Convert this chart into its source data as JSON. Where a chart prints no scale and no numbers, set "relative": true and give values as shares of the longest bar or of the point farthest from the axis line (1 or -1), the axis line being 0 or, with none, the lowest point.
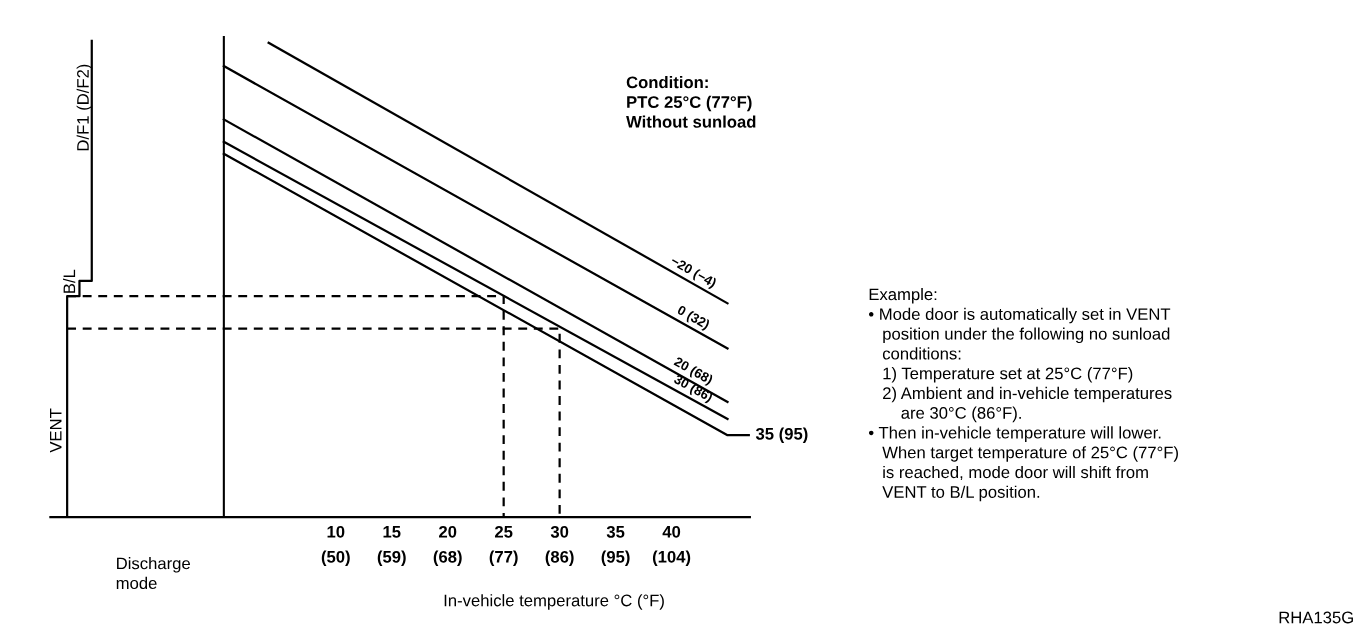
{
  "chart_data": {
    "type": "line",
    "relative": true,
    "xlabel": "In-vehicle temperature °C (°F)",
    "xlim": [
      -15.5,
      47
    ],
    "xticks": [
      10,
      15,
      20,
      25,
      30,
      35,
      40
    ],
    "x2lim": [
      4.1,
      116.6
    ],
    "x2ticks": [
      {
        "value": 50,
        "label": "(50)"
      },
      {
        "value": 59,
        "label": "(59)"
      },
      {
        "value": 68,
        "label": "(68)"
      },
      {
        "value": 77,
        "label": "(77)"
      },
      {
        "value": 86,
        "label": "(86)"
      },
      {
        "value": 95,
        "label": "(95)"
      },
      {
        "value": 104,
        "label": "(104)"
      }
    ],
    "grid": false,
    "legend": false,
    "marker": "none",
    "ref_lines": [
      {
        "axis": "x",
        "value": 0,
        "color": "#000000",
        "line_style": "solid"
      }
    ],
    "series": [
      {
        "name": "−20 (−4)",
        "color": "#000000",
        "x": [
          4,
          45
        ],
        "values": [
          0.996,
          0.449
        ]
      },
      {
        "name": "0 (32)",
        "color": "#000000",
        "x": [
          0,
          45
        ],
        "values": [
          0.947,
          0.354
        ]
      },
      {
        "name": "20 (68)",
        "color": "#000000",
        "x": [
          0,
          45
        ],
        "values": [
          0.835,
          0.242
        ]
      },
      {
        "name": "30 (86)",
        "color": "#000000",
        "x": [
          0,
          45
        ],
        "values": [
          0.788,
          0.206
        ]
      },
      {
        "name": "35 (95)",
        "color": "#000000",
        "x": [
          0,
          45,
          47
        ],
        "values": [
          0.763,
          0.172,
          0.172
        ]
      },
      {
        "color": "#000000",
        "x": [
          -14,
          -14,
          -12.9,
          -12.9,
          -11.8,
          -11.8
        ],
        "values": [
          0,
          0.464,
          0.464,
          0.496,
          0.496,
          1.0
        ]
      },
      {
        "color": "#000000",
        "line_style": "dashed",
        "x": [
          -14,
          25,
          25
        ],
        "values": [
          0.464,
          0.464,
          0
        ]
      },
      {
        "color": "#000000",
        "line_style": "dashed",
        "x": [
          -14,
          30,
          30
        ],
        "values": [
          0.396,
          0.396,
          0
        ]
      }
    ],
    "annotations": [
      "VENT",
      "B/L",
      "D/F1 (D/F2)",
      "Discharge\nmode",
      "Condition:\nPTC 25°C (77°F)\nWithout sunload",
      "Example:\n• Mode door is automatically set in VENT\n   position under the following no sunload\n   conditions:\n   1) Temperature set at 25°C (77°F)\n   2) Ambient and in-vehicle temperatures\n       are 30°C (86°F).\n• Then in-vehicle temperature will lower.\n   When target temperature of 25°C (77°F)\n   is reached, mode door will shift from\n   VENT to B/L position.",
      "RHA135G"
    ]
  }
}
